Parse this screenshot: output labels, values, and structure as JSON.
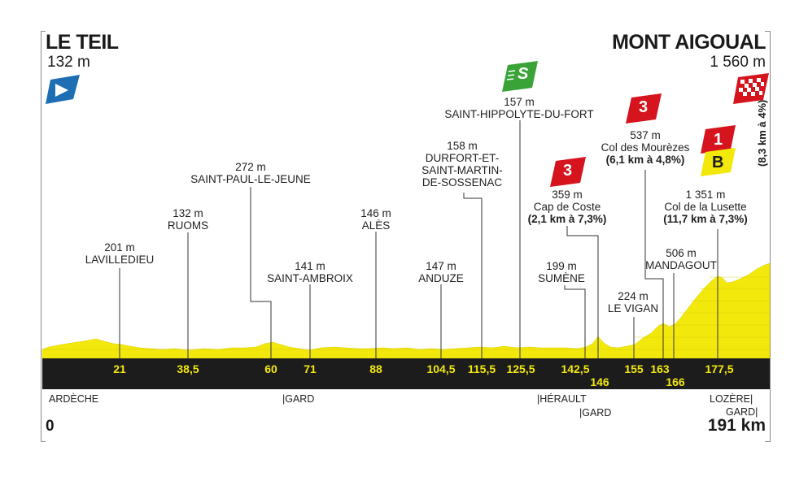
{
  "start": {
    "name": "LE TEIL",
    "altitude": "132 m"
  },
  "finish": {
    "name": "MONT AIGOUAL",
    "altitude": "1 560 m"
  },
  "distance": {
    "start": "0",
    "end": "191 km"
  },
  "climb_note": "(8,3 km à 4%)",
  "colors": {
    "profile": "#f3e80c",
    "band": "#1c1c1c",
    "km_text": "#f3e80c",
    "cat3": "#d6141e",
    "cat1": "#d6141e",
    "bonus": "#f3e80c",
    "sprint": "#3aa337",
    "start_flag": "#1e6eb4"
  },
  "icons": {
    "start": "start-flag-icon",
    "finish": "finish-flag-icon",
    "sprint": "sprint-icon",
    "cat3": "category-3-climb-icon",
    "cat1": "category-1-climb-icon",
    "bonus": "bonus-icon"
  },
  "badges": {
    "sprint": "S",
    "cat3a": "3",
    "cat3b": "3",
    "cat1": "1",
    "bonus": "B"
  },
  "waypoints": [
    {
      "alt": "201 m",
      "name": "LAVILLEDIEU",
      "km": "21"
    },
    {
      "alt": "132 m",
      "name": "RUOMS",
      "km": "38,5"
    },
    {
      "alt": "272 m",
      "name": "SAINT-PAUL-LE-JEUNE",
      "km": "60"
    },
    {
      "alt": "141 m",
      "name": "SAINT-AMBROIX",
      "km": "71"
    },
    {
      "alt": "146 m",
      "name": "ALÈS",
      "km": "88"
    },
    {
      "alt": "147 m",
      "name": "ANDUZE",
      "km": "104,5"
    },
    {
      "alt": "158 m",
      "name": "DURFORT-ET-",
      "name2": "SAINT-MARTIN-",
      "name3": "DE-SOSSENAC",
      "km": "115,5"
    },
    {
      "alt": "157 m",
      "name": "SAINT-HIPPOLYTE-DU-FORT",
      "km": "125,5"
    },
    {
      "alt": "199 m",
      "name": "SUMÈNE",
      "km": "142,5"
    },
    {
      "alt": "359 m",
      "name": "Cap de Coste",
      "detail": "(2,1 km à 7,3%)",
      "km": "146"
    },
    {
      "alt": "224 m",
      "name": "LE VIGAN",
      "km": "155"
    },
    {
      "alt": "537 m",
      "name": "Col des Mourèzes",
      "detail": "(6,1 km à 4,8%)",
      "km": "163"
    },
    {
      "alt": "506 m",
      "name": "MANDAGOUT",
      "km": "166"
    },
    {
      "alt": "1 351 m",
      "name": "Col de la Lusette",
      "detail": "(11,7 km à 7,3%)",
      "km": "177,5"
    }
  ],
  "regions": [
    "ARDÈCHE",
    "|GARD",
    "|HÉRAULT",
    "|GARD",
    "LOZÈRE|",
    "GARD|"
  ]
}
